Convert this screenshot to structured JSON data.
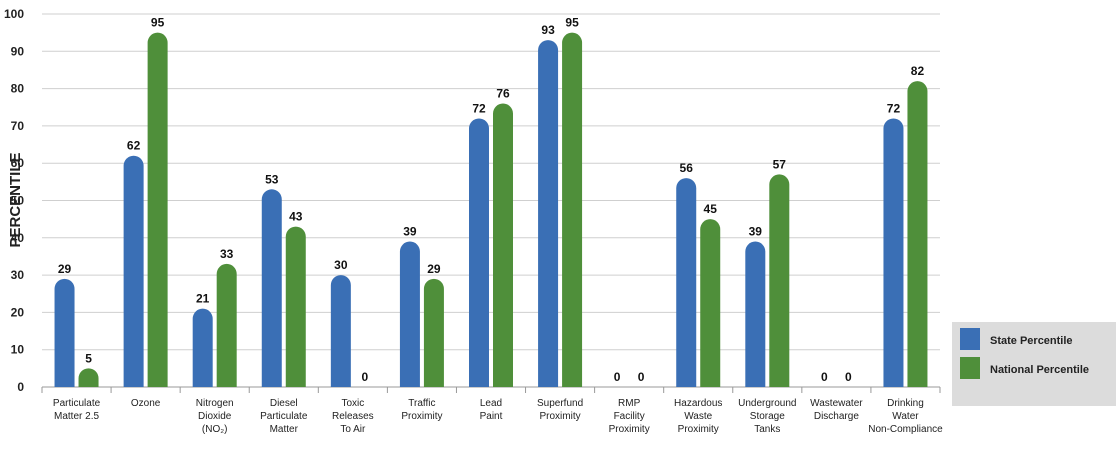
{
  "chart_data": {
    "type": "bar",
    "ylabel": "PERCENTILE",
    "ylim": [
      0,
      100
    ],
    "yticks": [
      0,
      10,
      20,
      30,
      40,
      50,
      60,
      70,
      80,
      90,
      100
    ],
    "grid": true,
    "legend_position": "bottom-right",
    "categories": [
      [
        "Particulate",
        "Matter 2.5"
      ],
      [
        "Ozone"
      ],
      [
        "Nitrogen",
        "Dioxide",
        "(NO₂)"
      ],
      [
        "Diesel",
        "Particulate",
        "Matter"
      ],
      [
        "Toxic",
        "Releases",
        "To Air"
      ],
      [
        "Traffic",
        "Proximity"
      ],
      [
        "Lead",
        "Paint"
      ],
      [
        "Superfund",
        "Proximity"
      ],
      [
        "RMP",
        "Facility",
        "Proximity"
      ],
      [
        "Hazardous",
        "Waste",
        "Proximity"
      ],
      [
        "Underground",
        "Storage",
        "Tanks"
      ],
      [
        "Wastewater",
        "Discharge"
      ],
      [
        "Drinking",
        "Water",
        "Non-Compliance"
      ]
    ],
    "series": [
      {
        "name": "State Percentile",
        "color": "#3a6fb5",
        "values": [
          29,
          62,
          21,
          53,
          30,
          39,
          72,
          93,
          0,
          56,
          39,
          0,
          72
        ]
      },
      {
        "name": "National Percentile",
        "color": "#4f8f3a",
        "values": [
          5,
          95,
          33,
          43,
          0,
          29,
          76,
          95,
          0,
          45,
          57,
          0,
          82
        ]
      }
    ]
  }
}
